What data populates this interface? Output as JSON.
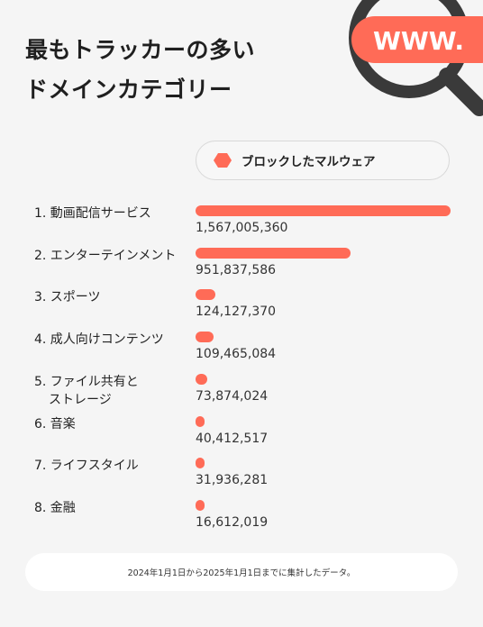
{
  "title_lines": [
    "最もトラッカーの多い",
    "ドメインカテゴリー"
  ],
  "magnifier_text": "WWW.",
  "legend_label": "ブロックしたマルウェア",
  "footer_note": "2024年1月1日から2025年1月1日までに集計したデータ。",
  "colors": {
    "accent": "#ff6b57",
    "dark": "#3a3a3a",
    "background": "#f5f5f5"
  },
  "chart_data": {
    "type": "bar",
    "orientation": "horizontal",
    "categories": [
      [
        "1. 動画配信サービス"
      ],
      [
        "2. エンターテインメント"
      ],
      [
        "3. スポーツ"
      ],
      [
        "4. 成人向けコンテンツ"
      ],
      [
        "5. ファイル共有と",
        "ストレージ"
      ],
      [
        "6. 音楽"
      ],
      [
        "7. ライフスタイル"
      ],
      [
        "8. 金融"
      ]
    ],
    "values": [
      1567005360,
      951837586,
      124127370,
      109465084,
      73874024,
      40412517,
      31936281,
      16612019
    ],
    "value_labels": [
      "1,567,005,360",
      "951,837,586",
      "124,127,370",
      "109,465,084",
      "73,874,024",
      "40,412,517",
      "31,936,281",
      "16,612,019"
    ],
    "series": [
      {
        "name": "ブロックしたマルウェア"
      }
    ]
  }
}
